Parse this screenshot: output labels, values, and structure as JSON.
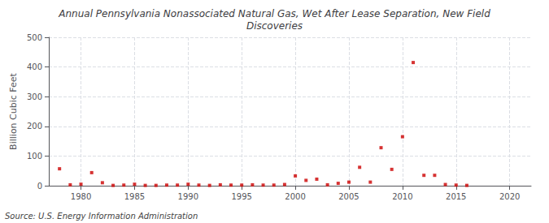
{
  "chart_data": {
    "type": "scatter",
    "title": "Annual Pennsylvania Nonassociated Natural Gas, Wet After Lease Separation, New Field\nDiscoveries",
    "ylabel": "Billion Cubic Feet",
    "source": "Source: U.S. Energy Information Administration",
    "color": "#cc0000",
    "marker": "square",
    "grid": true,
    "xlim": [
      1977,
      2022
    ],
    "xticks": [
      1980,
      1985,
      1990,
      1995,
      2000,
      2005,
      2010,
      2015,
      2020
    ],
    "ylim": [
      0,
      500
    ],
    "yticks": [
      0,
      100,
      200,
      300,
      400,
      500
    ],
    "x": [
      1978,
      1979,
      1980,
      1981,
      1982,
      1983,
      1984,
      1985,
      1986,
      1987,
      1988,
      1989,
      1990,
      1991,
      1992,
      1993,
      1994,
      1995,
      1996,
      1997,
      1998,
      1999,
      2000,
      2001,
      2002,
      2003,
      2004,
      2005,
      2006,
      2007,
      2008,
      2009,
      2010,
      2011,
      2012,
      2013,
      2014,
      2015,
      2016
    ],
    "values": [
      57,
      3,
      5,
      44,
      10,
      1,
      2,
      5,
      1,
      1,
      2,
      2,
      5,
      2,
      1,
      3,
      2,
      2,
      3,
      2,
      2,
      4,
      33,
      18,
      22,
      3,
      8,
      12,
      62,
      12,
      128,
      55,
      165,
      415,
      35,
      35,
      4,
      2,
      1
    ]
  }
}
